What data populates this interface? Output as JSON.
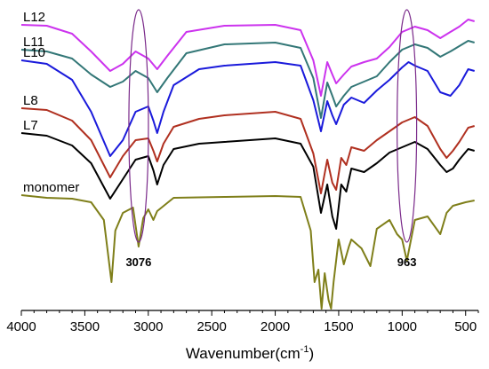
{
  "chart_data": {
    "type": "line",
    "xlabel": "Wavenumber(cm",
    "xlabel_sup": "-1",
    "xlabel_end": ")",
    "ylabel": "",
    "xlim": [
      4000,
      400
    ],
    "x_reversed": true,
    "x_ticks": [
      4000,
      3500,
      3000,
      2500,
      2000,
      1500,
      1000,
      500
    ],
    "grid": false,
    "series": [
      {
        "name": "L12",
        "color": "#cc33ee",
        "points": [
          [
            4000,
            20
          ],
          [
            3800,
            21
          ],
          [
            3600,
            30
          ],
          [
            3450,
            50
          ],
          [
            3300,
            72
          ],
          [
            3200,
            64
          ],
          [
            3100,
            50
          ],
          [
            3000,
            58
          ],
          [
            2930,
            70
          ],
          [
            2850,
            55
          ],
          [
            2700,
            28
          ],
          [
            2400,
            21
          ],
          [
            2000,
            20
          ],
          [
            1800,
            26
          ],
          [
            1700,
            60
          ],
          [
            1640,
            100
          ],
          [
            1590,
            62
          ],
          [
            1550,
            76
          ],
          [
            1520,
            86
          ],
          [
            1460,
            76
          ],
          [
            1400,
            67
          ],
          [
            1300,
            62
          ],
          [
            1200,
            58
          ],
          [
            1100,
            45
          ],
          [
            1000,
            28
          ],
          [
            900,
            22
          ],
          [
            800,
            26
          ],
          [
            700,
            35
          ],
          [
            620,
            28
          ],
          [
            550,
            22
          ],
          [
            480,
            14
          ],
          [
            430,
            16
          ]
        ]
      },
      {
        "name": "L11",
        "color": "#337777",
        "points": [
          [
            4000,
            48
          ],
          [
            3800,
            50
          ],
          [
            3600,
            58
          ],
          [
            3450,
            76
          ],
          [
            3300,
            90
          ],
          [
            3200,
            84
          ],
          [
            3100,
            72
          ],
          [
            3000,
            80
          ],
          [
            2930,
            96
          ],
          [
            2850,
            80
          ],
          [
            2700,
            52
          ],
          [
            2400,
            42
          ],
          [
            2000,
            40
          ],
          [
            1800,
            46
          ],
          [
            1700,
            80
          ],
          [
            1640,
            125
          ],
          [
            1590,
            85
          ],
          [
            1550,
            100
          ],
          [
            1520,
            112
          ],
          [
            1460,
            100
          ],
          [
            1400,
            90
          ],
          [
            1300,
            84
          ],
          [
            1200,
            78
          ],
          [
            1100,
            62
          ],
          [
            1000,
            48
          ],
          [
            900,
            42
          ],
          [
            800,
            46
          ],
          [
            700,
            56
          ],
          [
            620,
            50
          ],
          [
            550,
            44
          ],
          [
            480,
            38
          ],
          [
            430,
            40
          ]
        ]
      },
      {
        "name": "L10",
        "color": "#1a1adb",
        "points": [
          [
            4000,
            60
          ],
          [
            3800,
            64
          ],
          [
            3600,
            82
          ],
          [
            3450,
            118
          ],
          [
            3300,
            168
          ],
          [
            3200,
            150
          ],
          [
            3100,
            118
          ],
          [
            3000,
            112
          ],
          [
            2960,
            128
          ],
          [
            2930,
            142
          ],
          [
            2880,
            118
          ],
          [
            2800,
            88
          ],
          [
            2600,
            70
          ],
          [
            2400,
            66
          ],
          [
            2000,
            62
          ],
          [
            1800,
            66
          ],
          [
            1700,
            105
          ],
          [
            1640,
            140
          ],
          [
            1590,
            106
          ],
          [
            1550,
            122
          ],
          [
            1520,
            132
          ],
          [
            1460,
            110
          ],
          [
            1400,
            102
          ],
          [
            1300,
            108
          ],
          [
            1200,
            94
          ],
          [
            1100,
            82
          ],
          [
            1000,
            68
          ],
          [
            950,
            62
          ],
          [
            900,
            66
          ],
          [
            800,
            72
          ],
          [
            700,
            96
          ],
          [
            620,
            100
          ],
          [
            550,
            88
          ],
          [
            480,
            70
          ],
          [
            430,
            72
          ]
        ]
      },
      {
        "name": "L8",
        "color": "#b03020",
        "points": [
          [
            4000,
            114
          ],
          [
            3800,
            116
          ],
          [
            3600,
            128
          ],
          [
            3450,
            150
          ],
          [
            3300,
            192
          ],
          [
            3200,
            168
          ],
          [
            3100,
            150
          ],
          [
            3000,
            148
          ],
          [
            2960,
            162
          ],
          [
            2930,
            174
          ],
          [
            2880,
            154
          ],
          [
            2800,
            135
          ],
          [
            2600,
            126
          ],
          [
            2400,
            122
          ],
          [
            2000,
            118
          ],
          [
            1800,
            126
          ],
          [
            1700,
            165
          ],
          [
            1640,
            210
          ],
          [
            1590,
            172
          ],
          [
            1550,
            198
          ],
          [
            1520,
            206
          ],
          [
            1480,
            170
          ],
          [
            1440,
            178
          ],
          [
            1400,
            158
          ],
          [
            1300,
            162
          ],
          [
            1200,
            150
          ],
          [
            1100,
            140
          ],
          [
            1000,
            130
          ],
          [
            900,
            124
          ],
          [
            800,
            134
          ],
          [
            700,
            160
          ],
          [
            650,
            170
          ],
          [
            600,
            162
          ],
          [
            550,
            152
          ],
          [
            480,
            136
          ],
          [
            430,
            134
          ]
        ]
      },
      {
        "name": "L7",
        "color": "#000000",
        "points": [
          [
            4000,
            142
          ],
          [
            3800,
            145
          ],
          [
            3600,
            156
          ],
          [
            3450,
            176
          ],
          [
            3300,
            216
          ],
          [
            3200,
            194
          ],
          [
            3100,
            172
          ],
          [
            3000,
            168
          ],
          [
            2960,
            184
          ],
          [
            2930,
            200
          ],
          [
            2880,
            178
          ],
          [
            2800,
            160
          ],
          [
            2600,
            154
          ],
          [
            2400,
            152
          ],
          [
            2000,
            148
          ],
          [
            1800,
            154
          ],
          [
            1700,
            180
          ],
          [
            1640,
            232
          ],
          [
            1590,
            200
          ],
          [
            1550,
            236
          ],
          [
            1520,
            250
          ],
          [
            1480,
            200
          ],
          [
            1440,
            208
          ],
          [
            1400,
            182
          ],
          [
            1300,
            186
          ],
          [
            1200,
            176
          ],
          [
            1100,
            164
          ],
          [
            1000,
            158
          ],
          [
            900,
            152
          ],
          [
            800,
            160
          ],
          [
            700,
            178
          ],
          [
            650,
            186
          ],
          [
            600,
            182
          ],
          [
            550,
            172
          ],
          [
            480,
            160
          ],
          [
            430,
            162
          ]
        ]
      },
      {
        "name": "monomer",
        "color": "#7f7f1a",
        "points": [
          [
            4000,
            212
          ],
          [
            3800,
            215
          ],
          [
            3600,
            216
          ],
          [
            3450,
            220
          ],
          [
            3350,
            240
          ],
          [
            3290,
            310
          ],
          [
            3260,
            252
          ],
          [
            3200,
            232
          ],
          [
            3120,
            226
          ],
          [
            3076,
            270
          ],
          [
            3040,
            238
          ],
          [
            3000,
            228
          ],
          [
            2960,
            240
          ],
          [
            2930,
            230
          ],
          [
            2800,
            215
          ],
          [
            2400,
            214
          ],
          [
            2000,
            213
          ],
          [
            1800,
            214
          ],
          [
            1720,
            252
          ],
          [
            1690,
            310
          ],
          [
            1660,
            296
          ],
          [
            1635,
            340
          ],
          [
            1610,
            300
          ],
          [
            1580,
            330
          ],
          [
            1560,
            340
          ],
          [
            1540,
            310
          ],
          [
            1500,
            262
          ],
          [
            1460,
            290
          ],
          [
            1420,
            270
          ],
          [
            1400,
            262
          ],
          [
            1320,
            272
          ],
          [
            1250,
            292
          ],
          [
            1200,
            250
          ],
          [
            1100,
            240
          ],
          [
            1040,
            256
          ],
          [
            1000,
            262
          ],
          [
            963,
            286
          ],
          [
            930,
            262
          ],
          [
            900,
            240
          ],
          [
            800,
            236
          ],
          [
            700,
            256
          ],
          [
            650,
            232
          ],
          [
            600,
            224
          ],
          [
            500,
            220
          ],
          [
            430,
            218
          ]
        ]
      }
    ],
    "annotations": [
      {
        "text": "3076",
        "x": 3076,
        "type": "ellipse"
      },
      {
        "text": "963",
        "x": 963,
        "type": "ellipse"
      }
    ]
  }
}
